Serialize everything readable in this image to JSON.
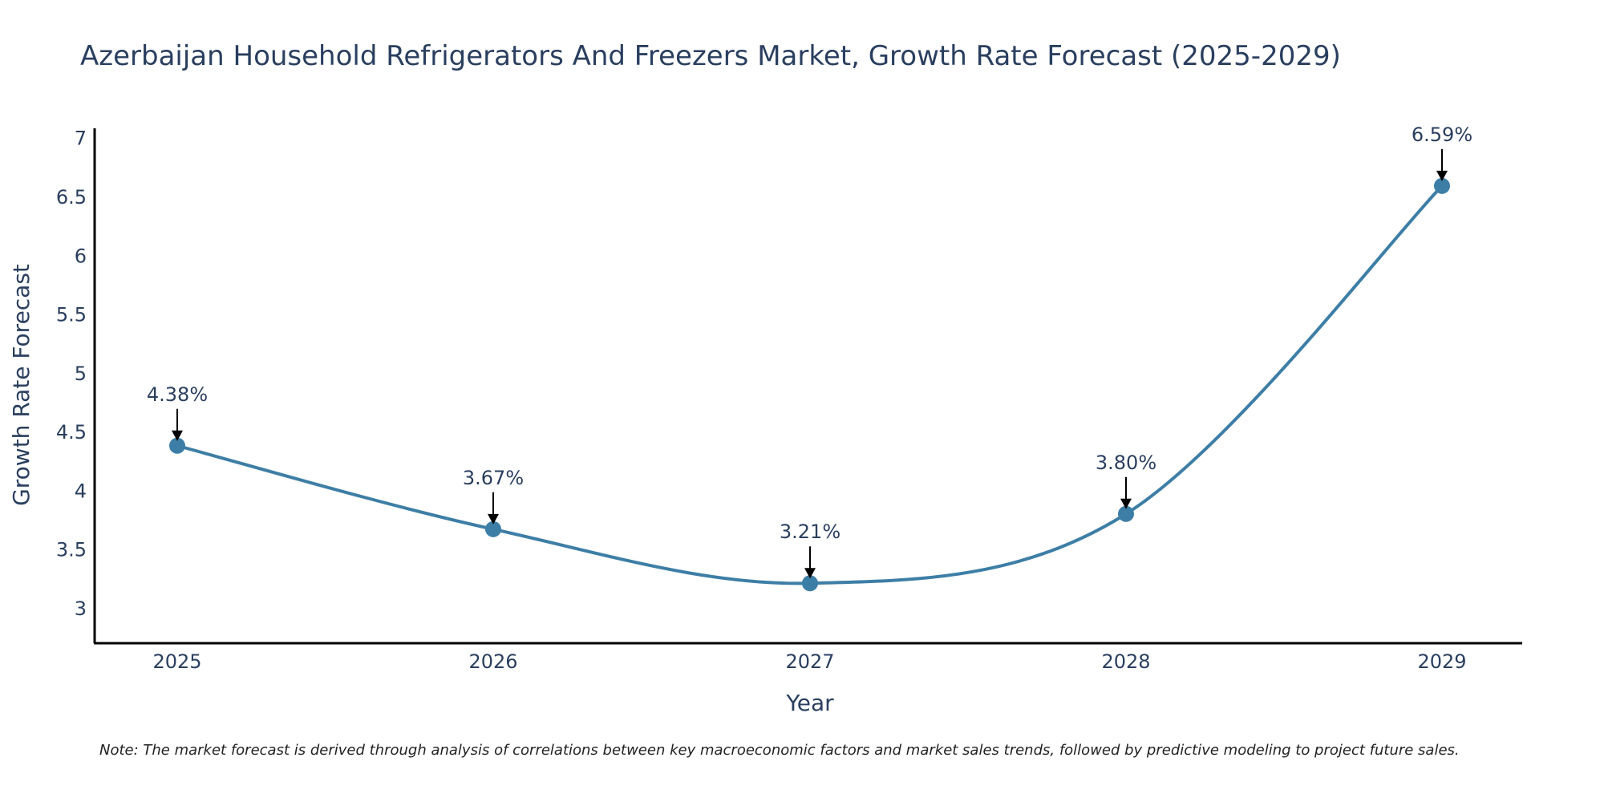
{
  "chart_data": {
    "type": "line",
    "title": "Azerbaijan Household Refrigerators And Freezers Market, Growth Rate Forecast (2025-2029)",
    "xlabel": "Year",
    "ylabel": "Growth Rate Forecast",
    "x": [
      "2025",
      "2026",
      "2027",
      "2028",
      "2029"
    ],
    "series": [
      {
        "name": "Growth Rate Forecast",
        "values": [
          4.38,
          3.67,
          3.21,
          3.8,
          6.59
        ],
        "labels": [
          "4.38%",
          "3.67%",
          "3.21%",
          "3.80%",
          "6.59%"
        ]
      }
    ],
    "ylim": [
      2.7,
      7.08
    ],
    "yticks": [
      3,
      3.5,
      4,
      4.5,
      5,
      5.5,
      6,
      6.5,
      7
    ],
    "ytick_labels": [
      "3",
      "3.5",
      "4",
      "4.5",
      "5",
      "5.5",
      "6",
      "6.5",
      "7"
    ],
    "grid": false,
    "line_color": "#3d7ea6",
    "marker_color": "#3d7ea6",
    "note": "Note: The market forecast is derived through analysis of correlations between key macroeconomic factors and market sales trends, followed by predictive modeling to project future sales."
  }
}
